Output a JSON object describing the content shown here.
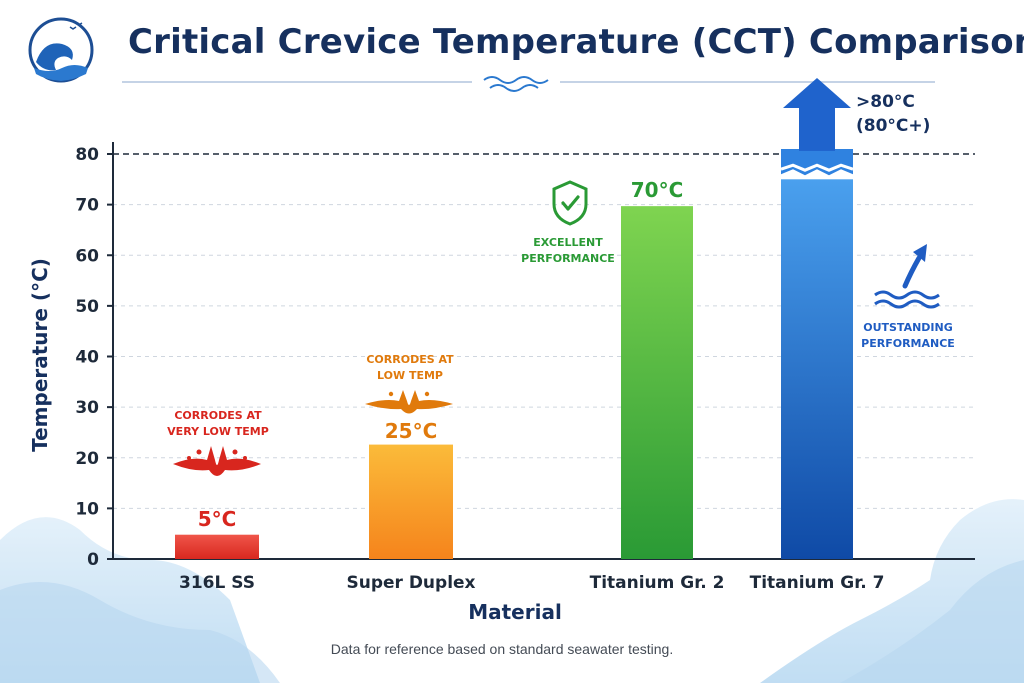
{
  "title": "Critical Crevice Temperature (CCT) Comparison",
  "footnote": "Data for reference based on standard seawater testing.",
  "colors": {
    "title": "#16305e",
    "bar_316l": "#e8413a",
    "bar_super_duplex": "#f8a12a",
    "bar_ti_gr2": "#3fae3d",
    "bar_ti_gr7": "#2b6fd6",
    "corrode_text": "#d8261e",
    "orange_text": "#e07a0c",
    "green_text": "#2a9a35",
    "blue_text": "#1f5cc2"
  },
  "annotations": {
    "corrodes_very_low": [
      "CORRODES AT",
      "VERY LOW TEMP"
    ],
    "corrodes_low": [
      "CORRODES AT",
      "LOW TEMP"
    ],
    "excellent": [
      "EXCELLENT",
      "PERFORMANCE"
    ],
    "outstanding": [
      "OUTSTANDING",
      "PERFORMANCE"
    ],
    "gr7_value": [
      ">80°C",
      "(80°C+)"
    ]
  },
  "chart_data": {
    "type": "bar",
    "title": "Critical Crevice Temperature (CCT) Comparison",
    "xlabel": "Material",
    "ylabel": "Temperature  (°C)",
    "categories": [
      "316L SS",
      "Super Duplex",
      "Titanium Gr. 2",
      "Titanium Gr. 7"
    ],
    "values": [
      5,
      25,
      70,
      80
    ],
    "value_labels": [
      "5°C",
      "25°C",
      "70°C",
      ">80°C (80°C+)"
    ],
    "ylim": [
      0,
      80
    ],
    "yticks": [
      0,
      10,
      20,
      30,
      40,
      50,
      60,
      70,
      80
    ],
    "grid": true,
    "reference_line": 80,
    "legend": "none",
    "notes": {
      "Titanium Gr. 7": "exceeds 80 (arrow above axis top)"
    }
  }
}
